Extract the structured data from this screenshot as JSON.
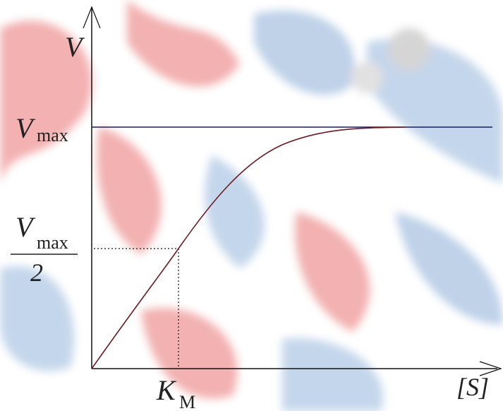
{
  "axes": {
    "y_label": "V",
    "x_label": "[S]"
  },
  "labels": {
    "vmax": {
      "symbol": "V",
      "subscript": "max"
    },
    "half_vmax": {
      "symbol": "V",
      "subscript": "max",
      "denominator": "2"
    },
    "km": {
      "symbol": "K",
      "subscript": "M"
    }
  }
}
